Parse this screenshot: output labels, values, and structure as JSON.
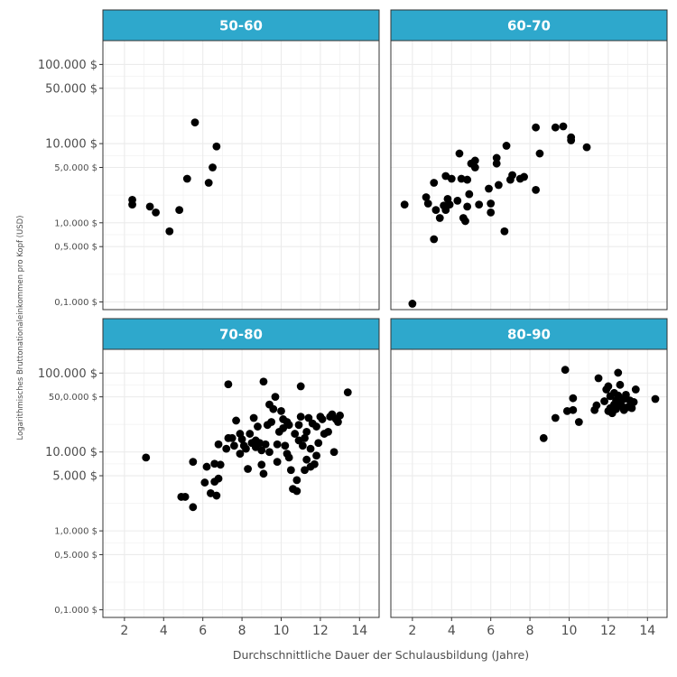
{
  "chart_data": {
    "type": "scatter",
    "facet_layout": "2x2",
    "xlabel": "Durchschnittliche Dauer der Schulausbildung (Jahre)",
    "ylabel": "Logarithmisches Bruttonationaleinkommen pro Kopf (USD)",
    "x_ticks": [
      2,
      4,
      6,
      8,
      10,
      12,
      14
    ],
    "xlim": [
      0.9,
      15.0
    ],
    "y_scale": "log10",
    "ylim": [
      0.08,
      200
    ],
    "y_ticks": [
      {
        "value": 0.1,
        "label": "0,1.000 $",
        "size": "small"
      },
      {
        "value": 0.5,
        "label": "0,5.000 $",
        "size": "small"
      },
      {
        "value": 1,
        "label": "1,0.000 $",
        "size": "small"
      },
      {
        "value": 5,
        "label": "5,0.000 $",
        "size": "small"
      },
      {
        "value": 10,
        "label": "10.000 $",
        "size": "large"
      },
      {
        "value": 50,
        "label": "50.000 $",
        "size": "large"
      },
      {
        "value": 100,
        "label": "100.000 $",
        "size": "large"
      }
    ],
    "y_ticks_bottom_row": [
      {
        "value": 0.1,
        "label": "0,1.000 $",
        "size": "small"
      },
      {
        "value": 0.5,
        "label": "0,5.000 $",
        "size": "small"
      },
      {
        "value": 1,
        "label": "1,0.000 $",
        "size": "small"
      },
      {
        "value": 5,
        "label": "5.000 $",
        "size": "large"
      },
      {
        "value": 10,
        "label": "10.000 $",
        "size": "large"
      },
      {
        "value": 50,
        "label": "50,0.000 $",
        "size": "small"
      },
      {
        "value": 100,
        "label": "100.000 $",
        "size": "large"
      }
    ],
    "grid": true,
    "strip_color": "#2ea8cc",
    "point_color": "#000000",
    "panels": [
      {
        "label": "50-60",
        "points": [
          [
            2.4,
            1.95
          ],
          [
            2.4,
            1.7
          ],
          [
            3.3,
            1.6
          ],
          [
            3.6,
            1.35
          ],
          [
            4.3,
            0.78
          ],
          [
            4.8,
            1.45
          ],
          [
            5.2,
            3.6
          ],
          [
            5.6,
            18.5
          ],
          [
            6.3,
            3.2
          ],
          [
            6.5,
            5.0
          ],
          [
            6.7,
            9.2
          ]
        ]
      },
      {
        "label": "60-70",
        "points": [
          [
            1.6,
            1.7
          ],
          [
            2.0,
            0.095
          ],
          [
            2.7,
            2.1
          ],
          [
            2.8,
            1.75
          ],
          [
            3.1,
            3.2
          ],
          [
            3.1,
            0.62
          ],
          [
            3.2,
            1.45
          ],
          [
            3.4,
            1.15
          ],
          [
            3.6,
            1.65
          ],
          [
            3.7,
            3.9
          ],
          [
            3.7,
            1.45
          ],
          [
            3.8,
            2.0
          ],
          [
            3.9,
            1.7
          ],
          [
            4.0,
            3.6
          ],
          [
            4.3,
            1.9
          ],
          [
            4.4,
            7.5
          ],
          [
            4.5,
            3.6
          ],
          [
            4.6,
            1.15
          ],
          [
            4.7,
            1.05
          ],
          [
            4.8,
            3.5
          ],
          [
            4.8,
            1.6
          ],
          [
            4.9,
            2.3
          ],
          [
            5.0,
            5.6
          ],
          [
            5.2,
            6.1
          ],
          [
            5.2,
            5.0
          ],
          [
            5.4,
            1.7
          ],
          [
            5.9,
            2.7
          ],
          [
            6.0,
            1.75
          ],
          [
            6.0,
            1.35
          ],
          [
            6.3,
            6.6
          ],
          [
            6.3,
            5.6
          ],
          [
            6.4,
            3.0
          ],
          [
            6.7,
            0.78
          ],
          [
            6.8,
            9.4
          ],
          [
            7.0,
            3.5
          ],
          [
            7.1,
            4.0
          ],
          [
            7.5,
            3.6
          ],
          [
            7.7,
            3.8
          ],
          [
            8.3,
            16.0
          ],
          [
            8.3,
            2.6
          ],
          [
            8.5,
            7.5
          ],
          [
            9.3,
            16.0
          ],
          [
            9.7,
            16.5
          ],
          [
            10.1,
            12.0
          ],
          [
            10.1,
            11.0
          ],
          [
            10.9,
            9.0
          ]
        ]
      },
      {
        "label": "70-80",
        "points": [
          [
            3.1,
            8.5
          ],
          [
            4.9,
            2.7
          ],
          [
            5.1,
            2.7
          ],
          [
            5.5,
            2.0
          ],
          [
            5.5,
            7.5
          ],
          [
            6.1,
            4.1
          ],
          [
            6.2,
            6.5
          ],
          [
            6.4,
            3.0
          ],
          [
            6.6,
            7.1
          ],
          [
            6.6,
            4.2
          ],
          [
            6.7,
            2.8
          ],
          [
            6.8,
            4.6
          ],
          [
            6.8,
            12.5
          ],
          [
            6.9,
            6.9
          ],
          [
            7.2,
            11.0
          ],
          [
            7.3,
            15.0
          ],
          [
            7.3,
            72.0
          ],
          [
            7.5,
            15.0
          ],
          [
            7.6,
            12.0
          ],
          [
            7.7,
            25.0
          ],
          [
            7.9,
            17.0
          ],
          [
            7.9,
            9.5
          ],
          [
            8.0,
            14.5
          ],
          [
            8.1,
            12.0
          ],
          [
            8.2,
            11.0
          ],
          [
            8.3,
            6.1
          ],
          [
            8.4,
            17.0
          ],
          [
            8.5,
            13.0
          ],
          [
            8.6,
            27.0
          ],
          [
            8.7,
            11.5
          ],
          [
            8.7,
            14.0
          ],
          [
            8.8,
            21.0
          ],
          [
            8.9,
            13.0
          ],
          [
            9.0,
            10.5
          ],
          [
            9.0,
            6.9
          ],
          [
            9.1,
            5.3
          ],
          [
            9.1,
            78.0
          ],
          [
            9.2,
            12.5
          ],
          [
            9.3,
            22.0
          ],
          [
            9.4,
            10.0
          ],
          [
            9.4,
            40.0
          ],
          [
            9.5,
            24.0
          ],
          [
            9.6,
            35.0
          ],
          [
            9.7,
            50.0
          ],
          [
            9.8,
            12.5
          ],
          [
            9.8,
            7.5
          ],
          [
            9.9,
            18.0
          ],
          [
            10.0,
            33.0
          ],
          [
            10.1,
            26.0
          ],
          [
            10.1,
            20.0
          ],
          [
            10.2,
            12.0
          ],
          [
            10.3,
            24.0
          ],
          [
            10.3,
            9.5
          ],
          [
            10.4,
            22.0
          ],
          [
            10.4,
            8.5
          ],
          [
            10.5,
            5.9
          ],
          [
            10.6,
            3.4
          ],
          [
            10.7,
            17.0
          ],
          [
            10.8,
            4.4
          ],
          [
            10.8,
            3.2
          ],
          [
            10.9,
            14.0
          ],
          [
            10.9,
            22.0
          ],
          [
            11.0,
            68.0
          ],
          [
            11.0,
            28.0
          ],
          [
            11.1,
            12.0
          ],
          [
            11.2,
            15.0
          ],
          [
            11.2,
            5.9
          ],
          [
            11.3,
            18.0
          ],
          [
            11.3,
            8.0
          ],
          [
            11.4,
            27.0
          ],
          [
            11.5,
            6.5
          ],
          [
            11.5,
            11.0
          ],
          [
            11.6,
            23.0
          ],
          [
            11.7,
            7.0
          ],
          [
            11.8,
            9.0
          ],
          [
            11.8,
            21.0
          ],
          [
            11.9,
            13.0
          ],
          [
            12.0,
            28.0
          ],
          [
            12.1,
            26.0
          ],
          [
            12.2,
            17.0
          ],
          [
            12.4,
            18.0
          ],
          [
            12.5,
            28.0
          ],
          [
            12.6,
            30.0
          ],
          [
            12.7,
            10.0
          ],
          [
            12.8,
            26.0
          ],
          [
            12.9,
            24.0
          ],
          [
            13.0,
            29.0
          ],
          [
            13.4,
            57.0
          ]
        ]
      },
      {
        "label": "80-90",
        "points": [
          [
            8.7,
            15.0
          ],
          [
            9.3,
            27.0
          ],
          [
            9.8,
            110.0
          ],
          [
            9.9,
            33.0
          ],
          [
            10.2,
            48.0
          ],
          [
            10.2,
            34.0
          ],
          [
            10.5,
            24.0
          ],
          [
            11.3,
            34.0
          ],
          [
            11.4,
            39.0
          ],
          [
            11.5,
            86.0
          ],
          [
            11.8,
            44.0
          ],
          [
            11.9,
            62.0
          ],
          [
            12.0,
            33.0
          ],
          [
            12.0,
            68.0
          ],
          [
            12.1,
            36.0
          ],
          [
            12.1,
            51.0
          ],
          [
            12.2,
            31.0
          ],
          [
            12.3,
            40.0
          ],
          [
            12.3,
            56.0
          ],
          [
            12.4,
            45.0
          ],
          [
            12.4,
            35.0
          ],
          [
            12.5,
            101.0
          ],
          [
            12.5,
            52.0
          ],
          [
            12.6,
            42.0
          ],
          [
            12.6,
            71.0
          ],
          [
            12.7,
            38.0
          ],
          [
            12.8,
            47.0
          ],
          [
            12.8,
            34.0
          ],
          [
            12.9,
            53.0
          ],
          [
            13.0,
            37.0
          ],
          [
            13.1,
            45.0
          ],
          [
            13.2,
            36.0
          ],
          [
            13.3,
            43.0
          ],
          [
            13.4,
            62.0
          ],
          [
            14.4,
            47.0
          ]
        ]
      }
    ]
  }
}
